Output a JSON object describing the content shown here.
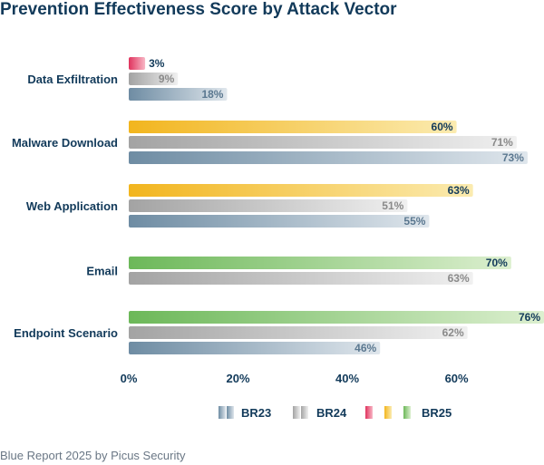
{
  "chart_data": {
    "type": "bar",
    "orientation": "horizontal",
    "title": "Prevention Effectiveness Score by Attack Vector",
    "categories": [
      "Data Exfiltration",
      "Malware Download",
      "Web Application",
      "Email",
      "Endpoint Scenario"
    ],
    "series": [
      {
        "name": "BR25",
        "values": [
          3,
          60,
          63,
          70,
          76
        ],
        "labels": [
          "3%",
          "60%",
          "63%",
          "70%",
          "76%"
        ]
      },
      {
        "name": "BR24",
        "values": [
          9,
          71,
          51,
          63,
          62
        ],
        "labels": [
          "9%",
          "71%",
          "51%",
          "63%",
          "62%"
        ]
      },
      {
        "name": "BR23",
        "values": [
          18,
          73,
          55,
          null,
          46
        ],
        "labels": [
          "18%",
          "73%",
          "55%",
          "",
          "46%"
        ]
      }
    ],
    "bar_colors": {
      "BR23": [
        "#6e8ca3",
        "#dfe6ec"
      ],
      "BR24": [
        "#a3a3a3",
        "#f0f0f0"
      ],
      "BR25_red": [
        "#e0335d",
        "#f8b7c6"
      ],
      "BR25_yellow": [
        "#f2b51e",
        "#fbebb0"
      ],
      "BR25_green": [
        "#6cb859",
        "#dcefcf"
      ]
    },
    "category_color_group": [
      "red",
      "yellow",
      "yellow",
      "green",
      "green"
    ],
    "xaxis": {
      "ticks": [
        0,
        20,
        40,
        60
      ],
      "tick_labels": [
        "0%",
        "20%",
        "40%",
        "60%"
      ],
      "xlim": [
        0,
        76
      ]
    },
    "legend": {
      "items": [
        "BR23",
        "BR24",
        "BR25"
      ],
      "position": "bottom"
    },
    "grid": false
  },
  "source": "Blue Report 2025 by Picus Security"
}
